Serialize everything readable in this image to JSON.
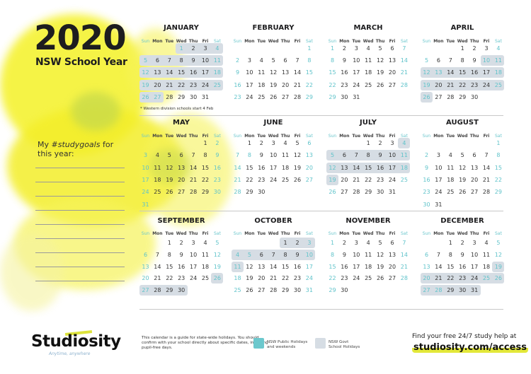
{
  "header": {
    "year": "2020",
    "subtitle": "NSW School Year"
  },
  "goals": {
    "prefix": "My ",
    "hashtag": "#studygoals",
    "suffix": " for",
    "line2": "this year:"
  },
  "calendar": {
    "year": 2020,
    "weekdays": [
      "Sun",
      "Mon",
      "Tue",
      "Wed",
      "Thu",
      "Fri",
      "Sat"
    ],
    "months": [
      {
        "name": "JANUARY",
        "school_holidays": [
          1,
          27
        ],
        "public_holidays": [
          1,
          27
        ]
      },
      {
        "name": "FEBRUARY",
        "school_holidays": null,
        "public_holidays": []
      },
      {
        "name": "MARCH",
        "school_holidays": null,
        "public_holidays": []
      },
      {
        "name": "APRIL",
        "school_holidays": [
          10,
          26
        ],
        "public_holidays": [
          10,
          13
        ]
      },
      {
        "name": "MAY",
        "school_holidays": null,
        "public_holidays": []
      },
      {
        "name": "JUNE",
        "school_holidays": null,
        "public_holidays": [
          8
        ]
      },
      {
        "name": "JULY",
        "school_holidays": [
          4,
          19
        ],
        "public_holidays": []
      },
      {
        "name": "AUGUST",
        "school_holidays": null,
        "public_holidays": []
      },
      {
        "name": "SEPTEMBER",
        "school_holidays": [
          26,
          30
        ],
        "public_holidays": []
      },
      {
        "name": "OCTOBER",
        "school_holidays": [
          1,
          11
        ],
        "public_holidays": [
          5
        ]
      },
      {
        "name": "NOVEMBER",
        "school_holidays": null,
        "public_holidays": []
      },
      {
        "name": "DECEMBER",
        "school_holidays": [
          19,
          31
        ],
        "public_holidays": [
          25,
          28
        ]
      }
    ],
    "note": "* Western division schools start 4 Feb"
  },
  "footer": {
    "brand": "Studiosity",
    "tagline": "Anytime, anywhere",
    "disclaimer": "This calendar is a guide for state-wide holidays. You should confirm with your school directly about specific dates, including pupil-free days.",
    "legend": [
      {
        "label_line1": "NSW Public Holidays",
        "label_line2": "and weekends",
        "color": "#6cc8cd"
      },
      {
        "label_line1": "NSW Govt",
        "label_line2": "School Holidays",
        "color": "#d6dde4"
      }
    ],
    "cta_text": "Find your free 24/7 study help at",
    "cta_link": "studiosity.com/access"
  },
  "colors": {
    "accent_yellow": "#f2ef1e",
    "teal": "#5fc3ca",
    "holiday_shade": "#d6dde4"
  }
}
